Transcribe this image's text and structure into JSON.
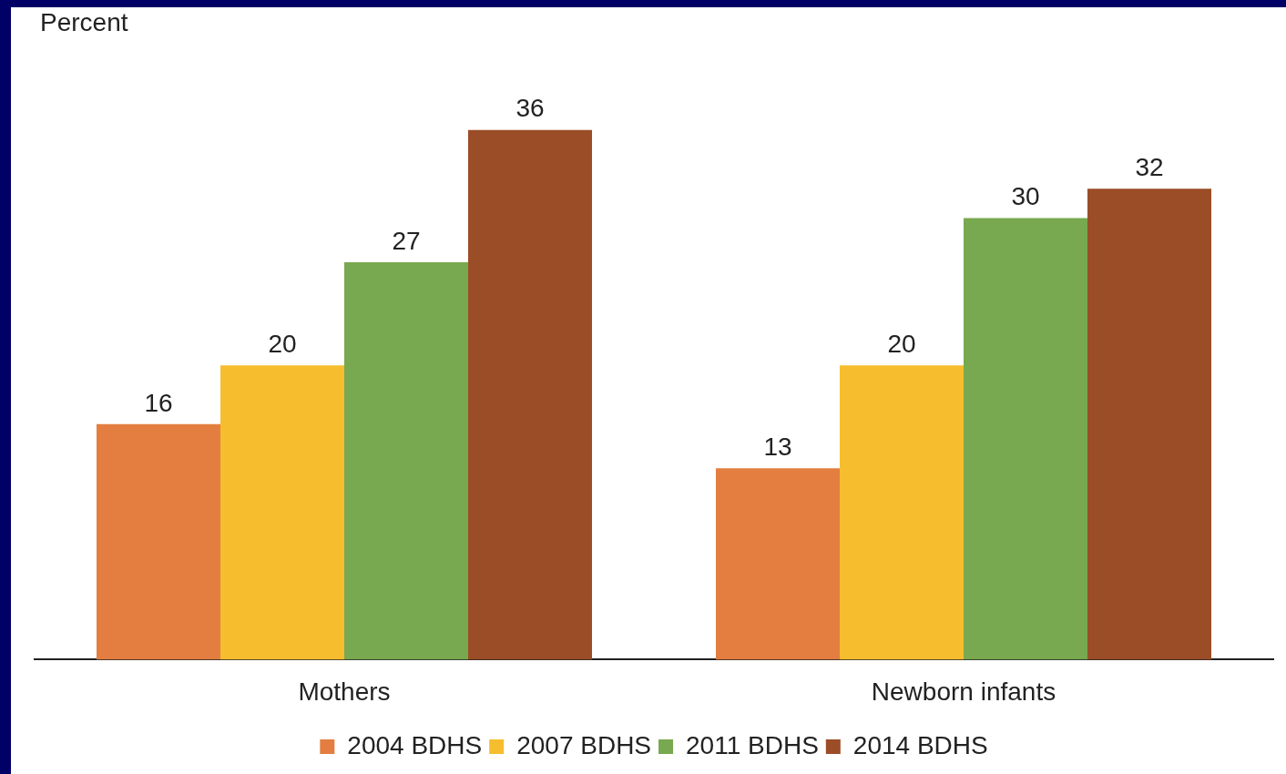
{
  "chart_data": {
    "type": "bar",
    "ylabel": "Percent",
    "categories": [
      "Mothers",
      "Newborn infants"
    ],
    "series": [
      {
        "name": "2004 BDHS",
        "color": "#e37e40",
        "values": [
          16,
          13
        ]
      },
      {
        "name": "2007 BDHS",
        "color": "#f6bd2e",
        "values": [
          20,
          20
        ]
      },
      {
        "name": "2011 BDHS",
        "color": "#78a84f",
        "values": [
          27,
          30
        ]
      },
      {
        "name": "2014 BDHS",
        "color": "#9b4d27",
        "values": [
          36,
          32
        ]
      }
    ],
    "data_labels": true,
    "legend": "bottom",
    "grid": false,
    "tick_labels": "x"
  }
}
